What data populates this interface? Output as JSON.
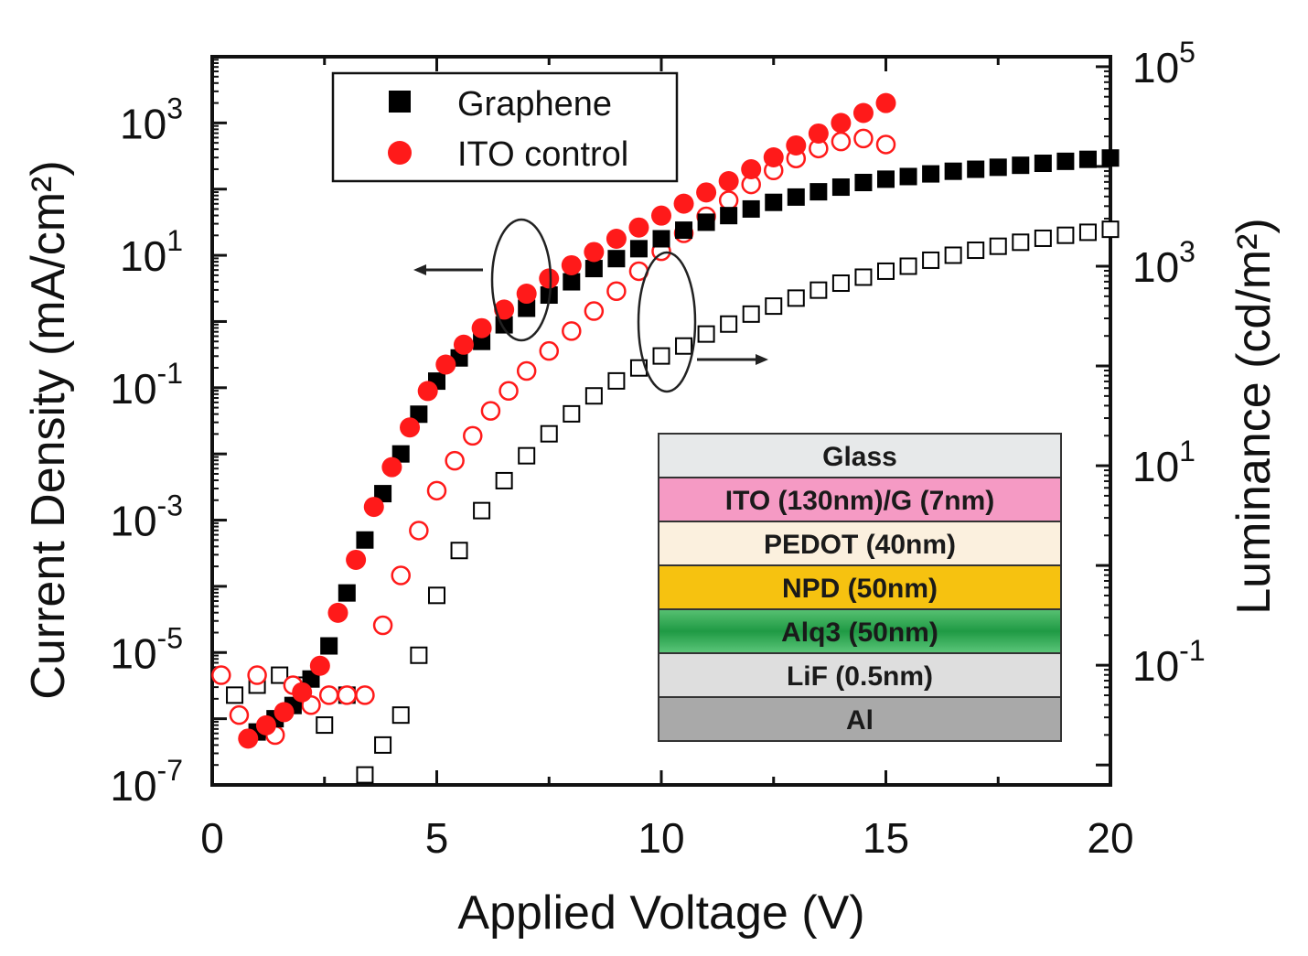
{
  "chart_data": {
    "type": "scatter",
    "xlabel": "Applied Voltage (V)",
    "ylabel_left": "Current Density (mA/cm²)",
    "ylabel_right": "Luminance (cd/m²)",
    "xlim": [
      0,
      20
    ],
    "ylim_left_log10": [
      -7,
      4
    ],
    "ylim_right_log10": [
      -2.2,
      5.1
    ],
    "x_ticks": [
      "0",
      "5",
      "10",
      "15",
      "20"
    ],
    "y_left_ticks": [
      {
        "exp": -7,
        "base": "10",
        "sup": "-7"
      },
      {
        "exp": -5,
        "base": "10",
        "sup": "-5"
      },
      {
        "exp": -3,
        "base": "10",
        "sup": "-3"
      },
      {
        "exp": -1,
        "base": "10",
        "sup": "-1"
      },
      {
        "exp": 1,
        "base": "10",
        "sup": "1"
      },
      {
        "exp": 3,
        "base": "10",
        "sup": "3"
      }
    ],
    "y_right_ticks": [
      {
        "exp": -1,
        "base": "10",
        "sup": "-1"
      },
      {
        "exp": 1,
        "base": "10",
        "sup": "1"
      },
      {
        "exp": 3,
        "base": "10",
        "sup": "3"
      },
      {
        "exp": 5,
        "base": "10",
        "sup": "5"
      }
    ],
    "legend": [
      {
        "label": "Graphene",
        "marker": "square",
        "color": "#000000"
      },
      {
        "label": "ITO control",
        "marker": "circle",
        "color": "#ff1a1a"
      }
    ],
    "series": [
      {
        "name": "Graphene current density",
        "axis": "left",
        "marker": "square",
        "filled": true,
        "color": "#000000",
        "x": [
          1.0,
          1.4,
          1.8,
          2.2,
          2.6,
          3.0,
          3.4,
          3.8,
          4.2,
          4.6,
          5.0,
          5.5,
          6.0,
          6.5,
          7.0,
          7.5,
          8.0,
          8.5,
          9.0,
          9.5,
          10.0,
          10.5,
          11.0,
          11.5,
          12.0,
          12.5,
          13.0,
          13.5,
          14.0,
          14.5,
          15.0,
          15.5,
          16.0,
          16.5,
          17.0,
          17.5,
          18.0,
          18.5,
          19.0,
          19.5,
          20.0
        ],
        "log10_y": [
          -6.2,
          -6.0,
          -5.8,
          -5.4,
          -4.9,
          -4.1,
          -3.3,
          -2.6,
          -2.0,
          -1.4,
          -0.9,
          -0.55,
          -0.3,
          -0.05,
          0.2,
          0.4,
          0.6,
          0.8,
          0.95,
          1.1,
          1.25,
          1.38,
          1.5,
          1.6,
          1.7,
          1.8,
          1.88,
          1.96,
          2.03,
          2.1,
          2.15,
          2.19,
          2.23,
          2.27,
          2.3,
          2.33,
          2.36,
          2.39,
          2.42,
          2.45,
          2.47
        ]
      },
      {
        "name": "ITO control current density",
        "axis": "left",
        "marker": "circle",
        "filled": true,
        "color": "#ff1a1a",
        "x": [
          0.8,
          1.2,
          1.6,
          2.0,
          2.4,
          2.8,
          3.2,
          3.6,
          4.0,
          4.4,
          4.8,
          5.2,
          5.6,
          6.0,
          6.5,
          7.0,
          7.5,
          8.0,
          8.5,
          9.0,
          9.5,
          10.0,
          10.5,
          11.0,
          11.5,
          12.0,
          12.5,
          13.0,
          13.5,
          14.0,
          14.5,
          15.0
        ],
        "log10_y": [
          -6.3,
          -6.1,
          -5.9,
          -5.6,
          -5.2,
          -4.4,
          -3.6,
          -2.8,
          -2.2,
          -1.6,
          -1.05,
          -0.65,
          -0.35,
          -0.1,
          0.18,
          0.42,
          0.65,
          0.85,
          1.05,
          1.25,
          1.42,
          1.6,
          1.78,
          1.95,
          2.12,
          2.3,
          2.48,
          2.66,
          2.84,
          3.0,
          3.15,
          3.3
        ]
      },
      {
        "name": "Graphene luminance",
        "axis": "right",
        "marker": "square",
        "filled": false,
        "color": "#000000",
        "x": [
          0.5,
          1.0,
          1.5,
          2.0,
          2.5,
          3.0,
          3.4,
          3.8,
          4.2,
          4.6,
          5.0,
          5.5,
          6.0,
          6.5,
          7.0,
          7.5,
          8.0,
          8.5,
          9.0,
          9.5,
          10.0,
          10.5,
          11.0,
          11.5,
          12.0,
          12.5,
          13.0,
          13.5,
          14.0,
          14.5,
          15.0,
          15.5,
          16.0,
          16.5,
          17.0,
          17.5,
          18.0,
          18.5,
          19.0,
          19.5,
          20.0
        ],
        "log10_y": [
          -1.3,
          -1.2,
          -1.1,
          -1.2,
          -1.6,
          -1.3,
          -2.1,
          -1.8,
          -1.5,
          -0.9,
          -0.3,
          0.15,
          0.55,
          0.85,
          1.1,
          1.32,
          1.52,
          1.7,
          1.85,
          1.98,
          2.1,
          2.2,
          2.32,
          2.42,
          2.52,
          2.6,
          2.68,
          2.76,
          2.83,
          2.89,
          2.95,
          3.0,
          3.06,
          3.11,
          3.16,
          3.2,
          3.24,
          3.28,
          3.31,
          3.34,
          3.37
        ]
      },
      {
        "name": "ITO control luminance",
        "axis": "right",
        "marker": "circle",
        "filled": false,
        "color": "#ff1a1a",
        "x": [
          0.2,
          0.6,
          1.0,
          1.4,
          1.8,
          2.2,
          2.6,
          3.0,
          3.4,
          3.8,
          4.2,
          4.6,
          5.0,
          5.4,
          5.8,
          6.2,
          6.6,
          7.0,
          7.5,
          8.0,
          8.5,
          9.0,
          9.5,
          10.0,
          10.5,
          11.0,
          11.5,
          12.0,
          12.5,
          13.0,
          13.5,
          14.0,
          14.5,
          15.0
        ],
        "log10_y": [
          -1.1,
          -1.5,
          -1.1,
          -1.7,
          -1.2,
          -1.4,
          -1.3,
          -1.3,
          -1.3,
          -0.6,
          -0.1,
          0.35,
          0.75,
          1.05,
          1.3,
          1.55,
          1.75,
          1.95,
          2.15,
          2.35,
          2.55,
          2.75,
          2.95,
          3.15,
          3.33,
          3.5,
          3.66,
          3.82,
          3.96,
          4.08,
          4.18,
          4.25,
          4.28,
          4.22
        ]
      }
    ],
    "annotations": {
      "left_arrow_hint": "arrow pointing left to Current Density axis",
      "right_arrow_hint": "arrow pointing right to Luminance axis"
    },
    "inset_device_stack": [
      {
        "label": "Glass",
        "color": "#e7e9ea"
      },
      {
        "label": "ITO (130nm)/G (7nm)",
        "color": "#f59ac4"
      },
      {
        "label": "PEDOT (40nm)",
        "color": "#fbf0de"
      },
      {
        "label": "NPD (50nm)",
        "color": "#f6c210"
      },
      {
        "label": "Alq3 (50nm)",
        "color": "#27a24a"
      },
      {
        "label": "LiF (0.5nm)",
        "color": "#dedede"
      },
      {
        "label": "Al",
        "color": "#a9a9a9"
      }
    ]
  }
}
